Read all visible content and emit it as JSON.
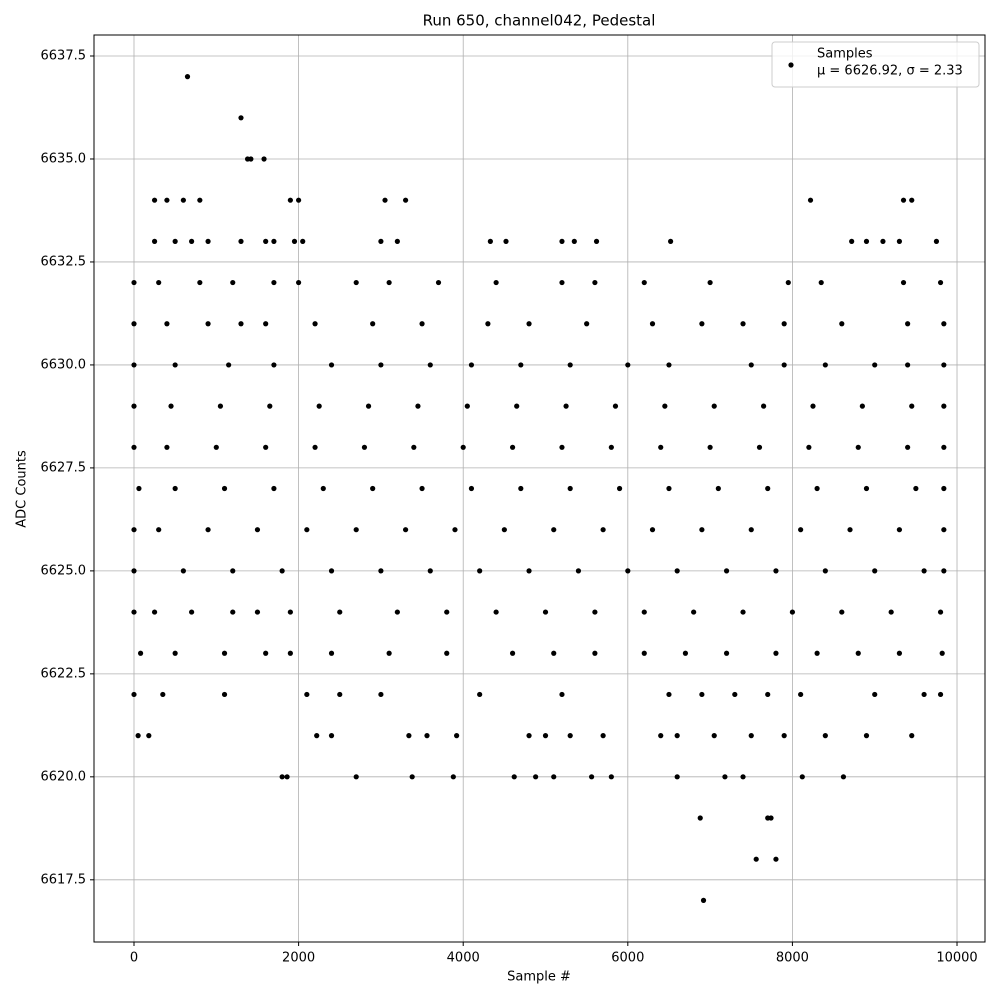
{
  "chart_data": {
    "type": "scatter",
    "title": "Run 650, channel042, Pedestal",
    "x_label": "Sample #",
    "y_label": "ADC Counts",
    "xlim": [
      -486,
      10340
    ],
    "ylim": [
      6615.99,
      6638.01
    ],
    "xticks": [
      0,
      2000,
      4000,
      6000,
      8000,
      10000
    ],
    "yticks": [
      6617.5,
      {
        "value": 6620,
        "label": "6620.0"
      },
      6622.5,
      {
        "value": 6625,
        "label": "6625.0"
      },
      6627.5,
      {
        "value": 6630,
        "label": "6630.0"
      },
      6632.5,
      {
        "value": 6635,
        "label": "6635.0"
      },
      6637.5
    ],
    "grid": true,
    "legend": "upper right",
    "legend_note": "μ = 6626.92, σ = 2.33",
    "series": [
      {
        "name": "Samples",
        "color": "#000000",
        "x": [
          650,
          1300,
          1380,
          1420,
          1580,
          6920,
          7560,
          7800,
          6880,
          7700,
          7740,
          250,
          400,
          600,
          800,
          1900,
          2000,
          3050,
          3300,
          8220,
          9350,
          9450,
          250,
          500,
          700,
          900,
          1300,
          1600,
          1700,
          1950,
          2050,
          3000,
          3200,
          4330,
          4520,
          5200,
          5350,
          5620,
          6520,
          8720,
          8900,
          9100,
          9300,
          9750,
          1800,
          1860,
          2700,
          3380,
          3880,
          4620,
          4880,
          5100,
          5560,
          5800,
          6600,
          7180,
          7400,
          8120,
          8620,
          50,
          180,
          2220,
          2400,
          3340,
          3560,
          3920,
          4800,
          5000,
          5300,
          5700,
          6400,
          6600,
          7050,
          7500,
          7900,
          8400,
          8900,
          9450,
          0,
          350,
          1100,
          2100,
          2500,
          3000,
          4200,
          5200,
          6500,
          6900,
          7300,
          7700,
          8100,
          9000,
          9600,
          9800,
          80,
          500,
          1100,
          1600,
          1900,
          2400,
          3100,
          3800,
          4600,
          5100,
          5600,
          6200,
          6700,
          7200,
          7800,
          8300,
          8800,
          9300,
          9820,
          0,
          250,
          700,
          1200,
          1500,
          1900,
          2500,
          3200,
          3800,
          4400,
          5000,
          5600,
          6200,
          6800,
          7400,
          8000,
          8600,
          9200,
          9800,
          0,
          600,
          1200,
          1800,
          2400,
          3000,
          3600,
          4200,
          4800,
          5400,
          6000,
          6600,
          7200,
          7800,
          8400,
          9000,
          9600,
          9840,
          0,
          300,
          900,
          1500,
          2100,
          2700,
          3300,
          3900,
          4500,
          5100,
          5700,
          6300,
          6900,
          7500,
          8100,
          8700,
          9300,
          9840,
          60,
          500,
          1100,
          1700,
          2300,
          2900,
          3500,
          4100,
          4700,
          5300,
          5900,
          6500,
          7100,
          7700,
          8300,
          8900,
          9500,
          9840,
          0,
          400,
          1000,
          1600,
          2200,
          2800,
          3400,
          4000,
          4600,
          5200,
          5800,
          6400,
          7000,
          7600,
          8200,
          8800,
          9400,
          9840,
          0,
          450,
          1050,
          1650,
          2250,
          2850,
          3450,
          4050,
          4650,
          5250,
          5850,
          6450,
          7050,
          7650,
          8250,
          8850,
          9450,
          9840,
          0,
          500,
          1150,
          1700,
          2400,
          3000,
          3600,
          4100,
          4700,
          5300,
          6000,
          6500,
          7500,
          7900,
          8400,
          9000,
          9400,
          9840,
          0,
          400,
          900,
          1300,
          1600,
          2200,
          2900,
          3500,
          4300,
          4800,
          5500,
          6300,
          6900,
          7400,
          7900,
          8600,
          9400,
          9840,
          0,
          300,
          800,
          1200,
          1700,
          2000,
          2700,
          3100,
          3700,
          4400,
          5200,
          5600,
          6200,
          7000,
          7950,
          8350,
          9350,
          9800
        ],
        "values": [
          6637,
          6636,
          6635,
          6635,
          6635,
          6617,
          6618,
          6618,
          6619,
          6619,
          6619,
          6634,
          6634,
          6634,
          6634,
          6634,
          6634,
          6634,
          6634,
          6634,
          6634,
          6634,
          6633,
          6633,
          6633,
          6633,
          6633,
          6633,
          6633,
          6633,
          6633,
          6633,
          6633,
          6633,
          6633,
          6633,
          6633,
          6633,
          6633,
          6633,
          6633,
          6633,
          6633,
          6633,
          6620,
          6620,
          6620,
          6620,
          6620,
          6620,
          6620,
          6620,
          6620,
          6620,
          6620,
          6620,
          6620,
          6620,
          6620,
          6621,
          6621,
          6621,
          6621,
          6621,
          6621,
          6621,
          6621,
          6621,
          6621,
          6621,
          6621,
          6621,
          6621,
          6621,
          6621,
          6621,
          6621,
          6621,
          6622,
          6622,
          6622,
          6622,
          6622,
          6622,
          6622,
          6622,
          6622,
          6622,
          6622,
          6622,
          6622,
          6622,
          6622,
          6622,
          6623,
          6623,
          6623,
          6623,
          6623,
          6623,
          6623,
          6623,
          6623,
          6623,
          6623,
          6623,
          6623,
          6623,
          6623,
          6623,
          6623,
          6623,
          6623,
          6624,
          6624,
          6624,
          6624,
          6624,
          6624,
          6624,
          6624,
          6624,
          6624,
          6624,
          6624,
          6624,
          6624,
          6624,
          6624,
          6624,
          6624,
          6624,
          6625,
          6625,
          6625,
          6625,
          6625,
          6625,
          6625,
          6625,
          6625,
          6625,
          6625,
          6625,
          6625,
          6625,
          6625,
          6625,
          6625,
          6625,
          6626,
          6626,
          6626,
          6626,
          6626,
          6626,
          6626,
          6626,
          6626,
          6626,
          6626,
          6626,
          6626,
          6626,
          6626,
          6626,
          6626,
          6626,
          6627,
          6627,
          6627,
          6627,
          6627,
          6627,
          6627,
          6627,
          6627,
          6627,
          6627,
          6627,
          6627,
          6627,
          6627,
          6627,
          6627,
          6627,
          6628,
          6628,
          6628,
          6628,
          6628,
          6628,
          6628,
          6628,
          6628,
          6628,
          6628,
          6628,
          6628,
          6628,
          6628,
          6628,
          6628,
          6628,
          6629,
          6629,
          6629,
          6629,
          6629,
          6629,
          6629,
          6629,
          6629,
          6629,
          6629,
          6629,
          6629,
          6629,
          6629,
          6629,
          6629,
          6629,
          6630,
          6630,
          6630,
          6630,
          6630,
          6630,
          6630,
          6630,
          6630,
          6630,
          6630,
          6630,
          6630,
          6630,
          6630,
          6630,
          6630,
          6630,
          6631,
          6631,
          6631,
          6631,
          6631,
          6631,
          6631,
          6631,
          6631,
          6631,
          6631,
          6631,
          6631,
          6631,
          6631,
          6631,
          6631,
          6631,
          6632,
          6632,
          6632,
          6632,
          6632,
          6632,
          6632,
          6632,
          6632,
          6632,
          6632,
          6632,
          6632,
          6632,
          6632,
          6632,
          6632,
          6632
        ]
      }
    ]
  }
}
